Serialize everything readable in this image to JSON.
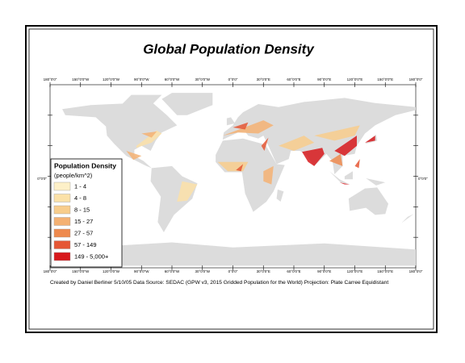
{
  "title": "Global Population Density",
  "longitude_labels_top": [
    "180°0'0\"",
    "150°0'0\"W",
    "120°0'0\"W",
    "90°0'0\"W",
    "60°0'0\"W",
    "30°0'0\"W",
    "0°0'0\"",
    "30°0'0\"E",
    "60°0'0\"E",
    "90°0'0\"E",
    "120°0'0\"E",
    "150°0'0\"E",
    "180°0'0\""
  ],
  "longitude_labels_bottom": [
    "180°0'0\"",
    "150°0'0\"W",
    "120°0'0\"W",
    "90°0'0\"W",
    "60°0'0\"W",
    "30°0'0\"W",
    "0°0'0\"",
    "30°0'0\"E",
    "60°0'0\"E",
    "90°0'0\"E",
    "120°0'0\"E",
    "150°0'0\"E",
    "180°0'0\""
  ],
  "latitude_labels": {
    "left": "0°0'0\"",
    "right": "0°0'0\""
  },
  "legend": {
    "title": "Population Density",
    "subtitle": "(people/km^2)",
    "items": [
      {
        "label": "1 - 4",
        "color": "#fdf0c8"
      },
      {
        "label": "4 - 8",
        "color": "#fbe1a8"
      },
      {
        "label": "8 - 15",
        "color": "#f8cd8c"
      },
      {
        "label": "15 - 27",
        "color": "#f4b173"
      },
      {
        "label": "27 - 57",
        "color": "#ee8a4e"
      },
      {
        "label": "57 - 149",
        "color": "#e55634"
      },
      {
        "label": "149 - 5,000+",
        "color": "#d7191c"
      }
    ]
  },
  "credit": "Created by Daniel Berliner 5/10/05  Data Source: SEDAC (GPW v3, 2015 Gridded Population for the World)  Projection: Plate Carree Equidistant"
}
